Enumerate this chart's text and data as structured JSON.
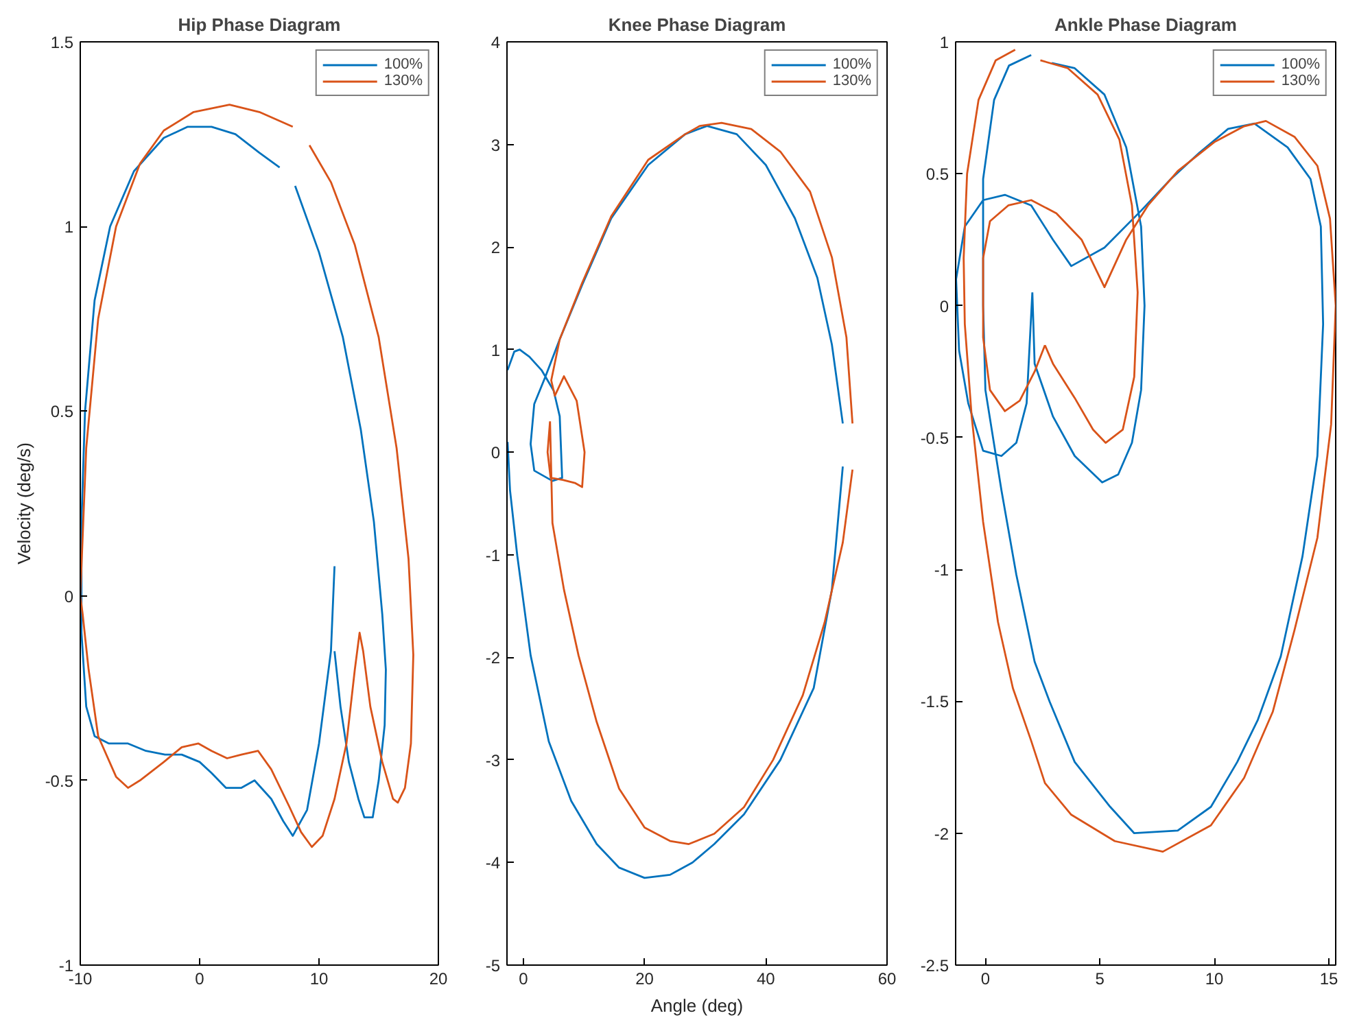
{
  "chart_data": [
    {
      "type": "line",
      "title": "Hip Phase Diagram",
      "ylabel": "Velocity (deg/s)",
      "xlim": [
        -10,
        20
      ],
      "ylim": [
        -1,
        1.5
      ],
      "xticks": [
        -10,
        0,
        10,
        20
      ],
      "yticks": [
        -1,
        -0.5,
        0,
        0.5,
        1,
        1.5
      ],
      "grid": false,
      "legend": "top right",
      "line_style": "solid",
      "series": [
        {
          "name": "100%",
          "color": "#0072bd",
          "x": [
            11.3,
            11.0,
            10.0,
            9.0,
            7.8,
            7.0,
            6.0,
            4.6,
            3.5,
            2.2,
            1.0,
            0.0,
            -1.5,
            -2.9,
            -4.5,
            -6.0,
            -7.6,
            -8.8,
            -9.5,
            -9.9,
            -9.9,
            -9.6,
            -8.8,
            -7.5,
            -5.5,
            -3.0,
            -1.0,
            1.0,
            3.0,
            5.0,
            6.7,
            null,
            8.0,
            10.0,
            12.0,
            13.5,
            14.6,
            15.3,
            15.6,
            15.5,
            15.0,
            14.5,
            13.8,
            13.3,
            12.5,
            11.8,
            11.3
          ],
          "values": [
            0.08,
            -0.15,
            -0.4,
            -0.58,
            -0.65,
            -0.61,
            -0.55,
            -0.5,
            -0.52,
            -0.52,
            -0.48,
            -0.45,
            -0.43,
            -0.43,
            -0.42,
            -0.4,
            -0.4,
            -0.38,
            -0.3,
            -0.1,
            0.2,
            0.5,
            0.8,
            1.0,
            1.15,
            1.24,
            1.27,
            1.27,
            1.25,
            1.2,
            1.16,
            null,
            1.11,
            0.93,
            0.7,
            0.45,
            0.2,
            -0.05,
            -0.2,
            -0.35,
            -0.5,
            -0.6,
            -0.6,
            -0.55,
            -0.45,
            -0.3,
            -0.15
          ]
        },
        {
          "name": "130%",
          "color": "#d95319",
          "x": [
            -10.0,
            -9.5,
            -8.5,
            -7.0,
            -5.0,
            -3.0,
            -0.5,
            2.5,
            5.0,
            7.8,
            null,
            9.2,
            11.0,
            13.0,
            15.0,
            16.5,
            17.5,
            17.9,
            17.7,
            17.2,
            16.6,
            16.2,
            15.3,
            14.3,
            13.7,
            13.4,
            13.0,
            12.3,
            11.3,
            10.3,
            9.4,
            8.5,
            7.5,
            6.0,
            4.9,
            3.5,
            2.3,
            1.0,
            -0.1,
            -1.5,
            -3.0,
            -5.0,
            -6.0,
            -7.0,
            -8.5,
            -9.3,
            -9.8,
            -10.0
          ],
          "values": [
            0.0,
            0.4,
            0.75,
            1.0,
            1.17,
            1.26,
            1.31,
            1.33,
            1.31,
            1.27,
            null,
            1.22,
            1.12,
            0.95,
            0.7,
            0.4,
            0.1,
            -0.16,
            -0.4,
            -0.52,
            -0.56,
            -0.55,
            -0.45,
            -0.3,
            -0.15,
            -0.1,
            -0.2,
            -0.4,
            -0.55,
            -0.65,
            -0.68,
            -0.64,
            -0.57,
            -0.47,
            -0.42,
            -0.43,
            -0.44,
            -0.42,
            -0.4,
            -0.41,
            -0.45,
            -0.5,
            -0.52,
            -0.49,
            -0.38,
            -0.2,
            -0.05,
            0.0
          ]
        }
      ]
    },
    {
      "type": "line",
      "title": "Knee Phase Diagram",
      "xlabel": "Angle (deg)",
      "xlim": [
        -2.7,
        60
      ],
      "ylim": [
        -5,
        4
      ],
      "xticks": [
        0,
        20,
        40,
        60
      ],
      "yticks": [
        -5,
        -4,
        -3,
        -2,
        -1,
        0,
        1,
        2,
        3,
        4
      ],
      "grid": false,
      "legend": "top right",
      "line_style": "solid",
      "series": [
        {
          "name": "100%",
          "color": "#0072bd",
          "x": [
            -2.6,
            -1.5,
            -0.6,
            1.0,
            3.0,
            5.0,
            6.0,
            6.4,
            4.8,
            1.8,
            1.2,
            1.8,
            3.6,
            6.0,
            9.7,
            14.5,
            20.6,
            26.7,
            30.3,
            35.2,
            40.0,
            44.8,
            48.5,
            50.9,
            52.7,
            null,
            52.7,
            50.9,
            47.9,
            42.4,
            36.4,
            31.5,
            27.9,
            24.2,
            20.0,
            15.8,
            12.1,
            7.9,
            4.2,
            1.2,
            -1.0,
            -2.2,
            -2.6
          ],
          "values": [
            0.8,
            0.98,
            1.0,
            0.93,
            0.8,
            0.6,
            0.35,
            -0.25,
            -0.28,
            -0.18,
            0.08,
            0.47,
            0.73,
            1.1,
            1.63,
            2.28,
            2.8,
            3.1,
            3.18,
            3.1,
            2.8,
            2.28,
            1.7,
            1.05,
            0.28,
            null,
            -0.14,
            -1.34,
            -2.3,
            -3.0,
            -3.53,
            -3.82,
            -4.0,
            -4.12,
            -4.15,
            -4.05,
            -3.82,
            -3.4,
            -2.82,
            -1.98,
            -1.01,
            -0.37,
            0.1
          ]
        },
        {
          "name": "130%",
          "color": "#d95319",
          "x": [
            4.4,
            4.8,
            6.7,
            9.1,
            12.1,
            15.8,
            20.0,
            24.2,
            27.3,
            31.5,
            36.4,
            41.2,
            46.1,
            49.7,
            52.7,
            54.3,
            null,
            54.3,
            53.3,
            50.9,
            47.3,
            42.4,
            37.6,
            32.7,
            29.1,
            26.7,
            20.6,
            14.5,
            9.7,
            6.0,
            4.6,
            5.2,
            6.7,
            8.8,
            10.1,
            9.7,
            8.5,
            6.5,
            4.5,
            4.0,
            4.4
          ],
          "values": [
            0.3,
            -0.69,
            -1.34,
            -1.98,
            -2.63,
            -3.28,
            -3.66,
            -3.79,
            -3.82,
            -3.72,
            -3.46,
            -3.0,
            -2.37,
            -1.66,
            -0.88,
            -0.17,
            null,
            0.28,
            1.12,
            1.9,
            2.54,
            2.93,
            3.15,
            3.21,
            3.18,
            3.1,
            2.85,
            2.3,
            1.65,
            1.1,
            0.7,
            0.55,
            0.74,
            0.5,
            0.0,
            -0.34,
            -0.3,
            -0.27,
            -0.25,
            0.0,
            0.3
          ]
        }
      ]
    },
    {
      "type": "line",
      "title": "Ankle Phase Diagram",
      "xlim": [
        -1.3,
        15.3
      ],
      "ylim": [
        -2.5,
        1
      ],
      "xticks": [
        0,
        5,
        10,
        15
      ],
      "yticks": [
        -2.5,
        -2,
        -1.5,
        -1,
        -0.5,
        0,
        0.5,
        1
      ],
      "grid": false,
      "legend": "top right",
      "line_style": "solid",
      "series": [
        {
          "name": "100%",
          "color": "#0072bd",
          "x": [
            2.05,
            2.15,
            2.95,
            3.9,
            5.1,
            5.8,
            6.4,
            6.8,
            6.95,
            6.8,
            6.15,
            5.2,
            3.9,
            2.9,
            null,
            2.0,
            1.03,
            0.38,
            -0.1,
            -0.1,
            0.0,
            0.7,
            1.35,
            2.15,
            2.8,
            3.9,
            5.45,
            6.5,
            8.4,
            9.85,
            11.0,
            11.9,
            12.9,
            13.85,
            14.5,
            14.75,
            14.65,
            14.2,
            13.2,
            11.75,
            10.6,
            9.35,
            8.1,
            6.8,
            5.2,
            3.75,
            2.95,
            2.0,
            0.85,
            -0.1,
            -0.9,
            -1.28,
            -1.15,
            -0.75,
            -0.1,
            0.7,
            1.35,
            1.8,
            2.05
          ],
          "values": [
            0.05,
            -0.22,
            -0.42,
            -0.57,
            -0.67,
            -0.64,
            -0.52,
            -0.32,
            0.0,
            0.3,
            0.6,
            0.8,
            0.9,
            0.92,
            null,
            0.95,
            0.91,
            0.78,
            0.48,
            0.0,
            -0.32,
            -0.7,
            -1.02,
            -1.35,
            -1.5,
            -1.73,
            -1.9,
            -2.0,
            -1.99,
            -1.9,
            -1.73,
            -1.57,
            -1.33,
            -0.95,
            -0.57,
            -0.07,
            0.3,
            0.48,
            0.6,
            0.69,
            0.67,
            0.58,
            0.48,
            0.36,
            0.22,
            0.15,
            0.25,
            0.38,
            0.42,
            0.4,
            0.3,
            0.1,
            -0.17,
            -0.37,
            -0.55,
            -0.57,
            -0.52,
            -0.37,
            0.05
          ]
        },
        {
          "name": "130%",
          "color": "#d95319",
          "x": [
            2.6,
            2.95,
            3.9,
            4.7,
            5.25,
            6.0,
            6.5,
            6.65,
            6.4,
            5.85,
            4.9,
            3.6,
            2.4,
            null,
            1.3,
            0.45,
            -0.3,
            -0.8,
            -0.95,
            -0.9,
            -0.6,
            -0.1,
            0.55,
            1.2,
            2.0,
            2.6,
            3.75,
            5.65,
            7.75,
            9.85,
            11.3,
            12.55,
            13.5,
            14.5,
            15.1,
            15.3,
            15.05,
            14.5,
            13.5,
            12.25,
            11.3,
            10.0,
            8.4,
            7.1,
            6.15,
            5.2,
            4.2,
            3.1,
            2.0,
            1.0,
            0.2,
            -0.1,
            -0.1,
            0.2,
            0.85,
            1.5,
            2.15,
            2.6
          ],
          "values": [
            -0.15,
            -0.22,
            -0.35,
            -0.47,
            -0.52,
            -0.47,
            -0.27,
            0.05,
            0.38,
            0.63,
            0.8,
            0.9,
            0.93,
            null,
            0.97,
            0.93,
            0.78,
            0.5,
            0.18,
            -0.07,
            -0.42,
            -0.82,
            -1.2,
            -1.45,
            -1.65,
            -1.81,
            -1.93,
            -2.03,
            -2.07,
            -1.97,
            -1.79,
            -1.54,
            -1.23,
            -0.88,
            -0.45,
            0.0,
            0.33,
            0.53,
            0.64,
            0.7,
            0.68,
            0.62,
            0.51,
            0.38,
            0.25,
            0.07,
            0.25,
            0.35,
            0.4,
            0.38,
            0.32,
            0.18,
            -0.12,
            -0.32,
            -0.4,
            -0.36,
            -0.25,
            -0.15
          ]
        }
      ]
    }
  ]
}
